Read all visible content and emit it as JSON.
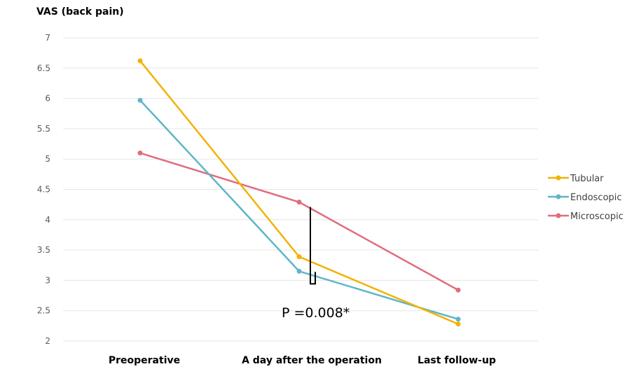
{
  "chart_data": {
    "type": "line",
    "title": "VAS (back pain)",
    "xlabel": "",
    "ylabel": "",
    "categories": [
      "Preoperative",
      "A day after the operation",
      "Last follow-up"
    ],
    "ylim": [
      2,
      7
    ],
    "yticks": [
      "2",
      "2.5",
      "3",
      "3.5",
      "4",
      "4.5",
      "5",
      "5.5",
      "6",
      "6.5",
      "7"
    ],
    "grid": true,
    "legend_position": "right",
    "series": [
      {
        "name": "Tubular",
        "color": "#f2b200",
        "values": [
          6.62,
          3.39,
          2.28
        ]
      },
      {
        "name": "Endoscopic",
        "color": "#5db6c8",
        "values": [
          5.97,
          3.15,
          2.36
        ]
      },
      {
        "name": "Microscopic",
        "color": "#e06c7e",
        "values": [
          5.1,
          4.29,
          2.84
        ]
      }
    ],
    "annotation": {
      "text": "P =0.008*",
      "bracket_between": [
        "Microscopic",
        "Endoscopic"
      ],
      "category": "A day after the operation"
    }
  }
}
